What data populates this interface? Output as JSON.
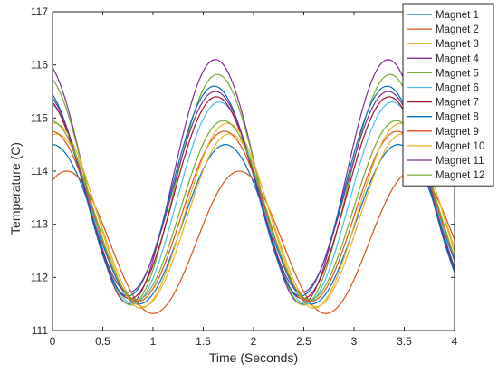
{
  "chart_data": {
    "type": "line",
    "title": "",
    "xlabel": "Time (Seconds)",
    "ylabel": "Temperature (C)",
    "xlim": [
      0,
      4
    ],
    "ylim": [
      111,
      117
    ],
    "xticks": [
      0,
      0.5,
      1,
      1.5,
      2,
      2.5,
      3,
      3.5,
      4
    ],
    "xtick_labels": [
      "0",
      "0.5",
      "1",
      "1.5",
      "2",
      "2.5",
      "3",
      "3.5",
      "4"
    ],
    "yticks": [
      111,
      112,
      113,
      114,
      115,
      116,
      117
    ],
    "ytick_labels": [
      "111",
      "112",
      "113",
      "114",
      "115",
      "116",
      "117"
    ],
    "grid": false,
    "legend_position": "top-right",
    "period": 1.72,
    "series": [
      {
        "name": "Magnet 1",
        "color": "#0072BD",
        "peak": 114.5,
        "min": 111.5,
        "peak_time": 1.72
      },
      {
        "name": "Magnet 2",
        "color": "#D95319",
        "peak": 114.0,
        "min": 111.32,
        "peak_time": 1.86
      },
      {
        "name": "Magnet 3",
        "color": "#EDB120",
        "peak": 114.7,
        "min": 111.45,
        "peak_time": 1.76
      },
      {
        "name": "Magnet 4",
        "color": "#7E2F8E",
        "peak": 116.1,
        "min": 111.5,
        "peak_time": 1.62
      },
      {
        "name": "Magnet 5",
        "color": "#77AC30",
        "peak": 115.82,
        "min": 111.48,
        "peak_time": 1.64
      },
      {
        "name": "Magnet 6",
        "color": "#4DBEEE",
        "peak": 115.3,
        "min": 111.5,
        "peak_time": 1.66
      },
      {
        "name": "Magnet 7",
        "color": "#A2142F",
        "peak": 115.4,
        "min": 111.6,
        "peak_time": 1.63
      },
      {
        "name": "Magnet 8",
        "color": "#0072BD",
        "peak": 115.6,
        "min": 111.65,
        "peak_time": 1.61
      },
      {
        "name": "Magnet 9",
        "color": "#D95319",
        "peak": 114.75,
        "min": 111.55,
        "peak_time": 1.71
      },
      {
        "name": "Magnet 10",
        "color": "#EDB120",
        "peak": 114.9,
        "min": 111.42,
        "peak_time": 1.74
      },
      {
        "name": "Magnet 11",
        "color": "#7E2F8E",
        "peak": 115.5,
        "min": 111.72,
        "peak_time": 1.62
      },
      {
        "name": "Magnet 12",
        "color": "#77AC30",
        "peak": 114.95,
        "min": 111.58,
        "peak_time": 1.7
      }
    ]
  }
}
